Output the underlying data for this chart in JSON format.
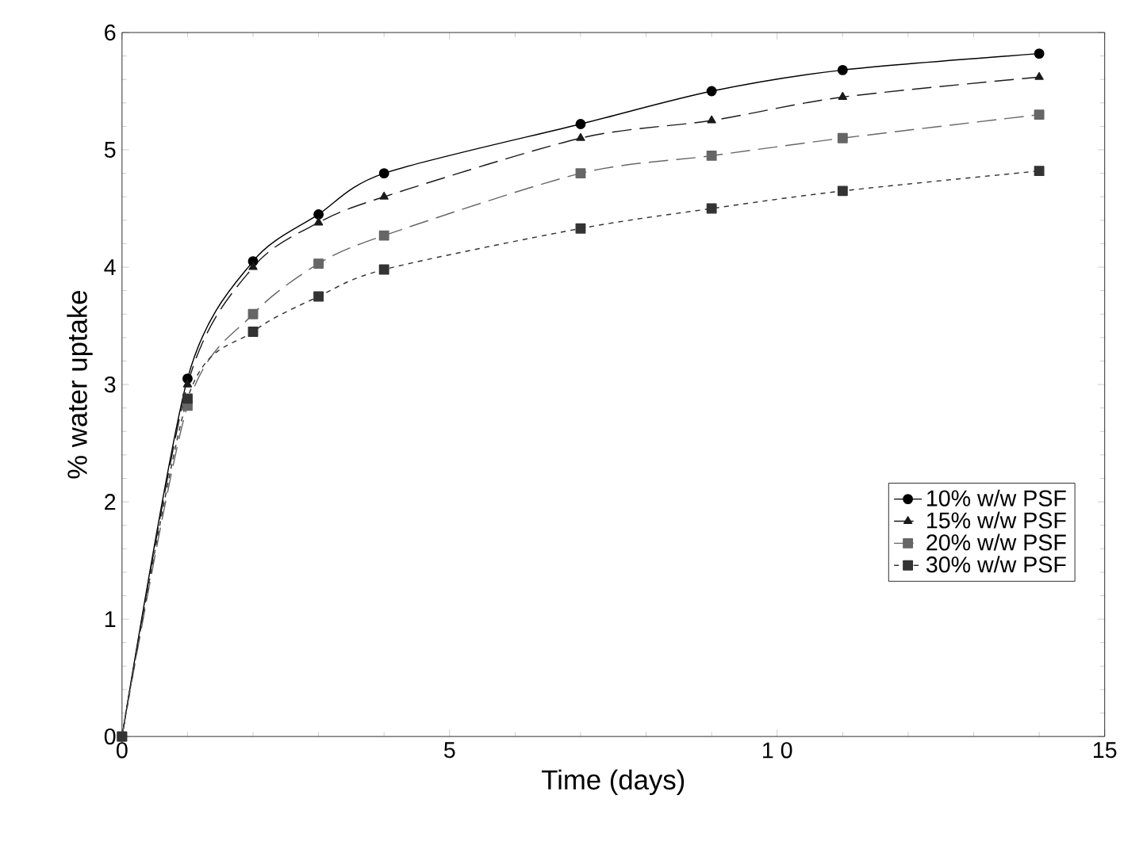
{
  "chart_data": {
    "type": "line",
    "xlabel": "Time (days)",
    "ylabel": "% water uptake",
    "x": [
      0,
      1,
      2,
      3,
      4,
      7,
      9,
      11,
      14
    ],
    "series": [
      {
        "name": "10% w/w PSF",
        "color": "#000000",
        "marker": "circle",
        "line_style": "solid",
        "values": [
          0,
          3.05,
          4.05,
          4.45,
          4.8,
          5.22,
          5.5,
          5.68,
          5.82
        ]
      },
      {
        "name": "15% w/w PSF",
        "color": "#1a1a1a",
        "marker": "triangle",
        "line_style": "dashed",
        "values": [
          0,
          3.0,
          4.0,
          4.38,
          4.6,
          5.1,
          5.25,
          5.45,
          5.62
        ]
      },
      {
        "name": "20% w/w PSF",
        "color": "#666666",
        "marker": "square",
        "line_style": "dashed",
        "values": [
          0,
          2.82,
          3.6,
          4.03,
          4.27,
          4.8,
          4.95,
          5.1,
          5.3
        ]
      },
      {
        "name": "30% w/w PSF",
        "color": "#333333",
        "marker": "square",
        "line_style": "dotted",
        "values": [
          0,
          2.88,
          3.45,
          3.75,
          3.98,
          4.33,
          4.5,
          4.65,
          4.82
        ]
      }
    ],
    "xlim": [
      0,
      15
    ],
    "ylim": [
      0,
      6
    ],
    "xticks": [
      0,
      5,
      {
        "value": 10,
        "label": "1 0"
      },
      15
    ],
    "yticks": [
      0,
      1,
      2,
      3,
      4,
      5,
      6
    ],
    "grid": false,
    "legend": "bottom right"
  }
}
